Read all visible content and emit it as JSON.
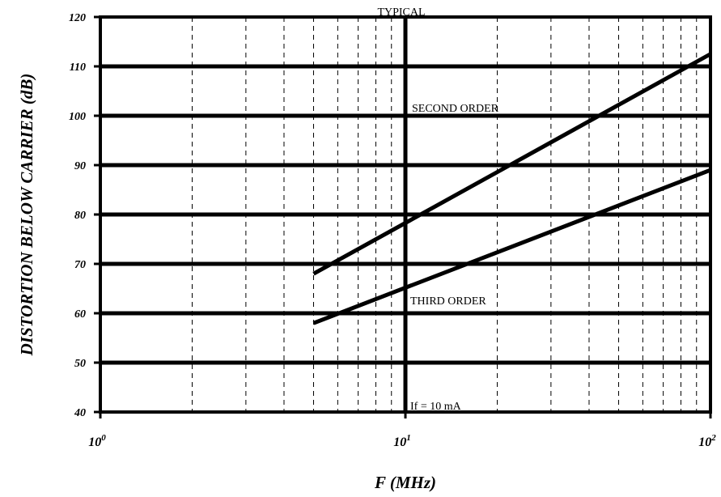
{
  "chart_data": {
    "type": "line",
    "title": "TYPICAL",
    "xlabel": "F (MHz)",
    "ylabel": "DISTORTION BELOW CARRIER (dB)",
    "x_scale": "log",
    "xlim": [
      1,
      100
    ],
    "ylim": [
      40,
      120
    ],
    "grid": true,
    "x_ticks": [
      {
        "value": 1,
        "base": "10",
        "exp": "0"
      },
      {
        "value": 10,
        "base": "10",
        "exp": "1"
      },
      {
        "value": 100,
        "base": "10",
        "exp": "2"
      }
    ],
    "y_ticks": [
      40,
      50,
      60,
      70,
      80,
      90,
      100,
      110,
      120
    ],
    "series": [
      {
        "x": [
          5,
          100
        ],
        "y": [
          68,
          112.5
        ]
      },
      {
        "x": [
          5,
          100
        ],
        "y": [
          58,
          89
        ]
      }
    ],
    "annotations": {
      "second": "SECOND ORDER",
      "third": "THIRD ORDER",
      "condition": "If = 10 mA"
    }
  }
}
